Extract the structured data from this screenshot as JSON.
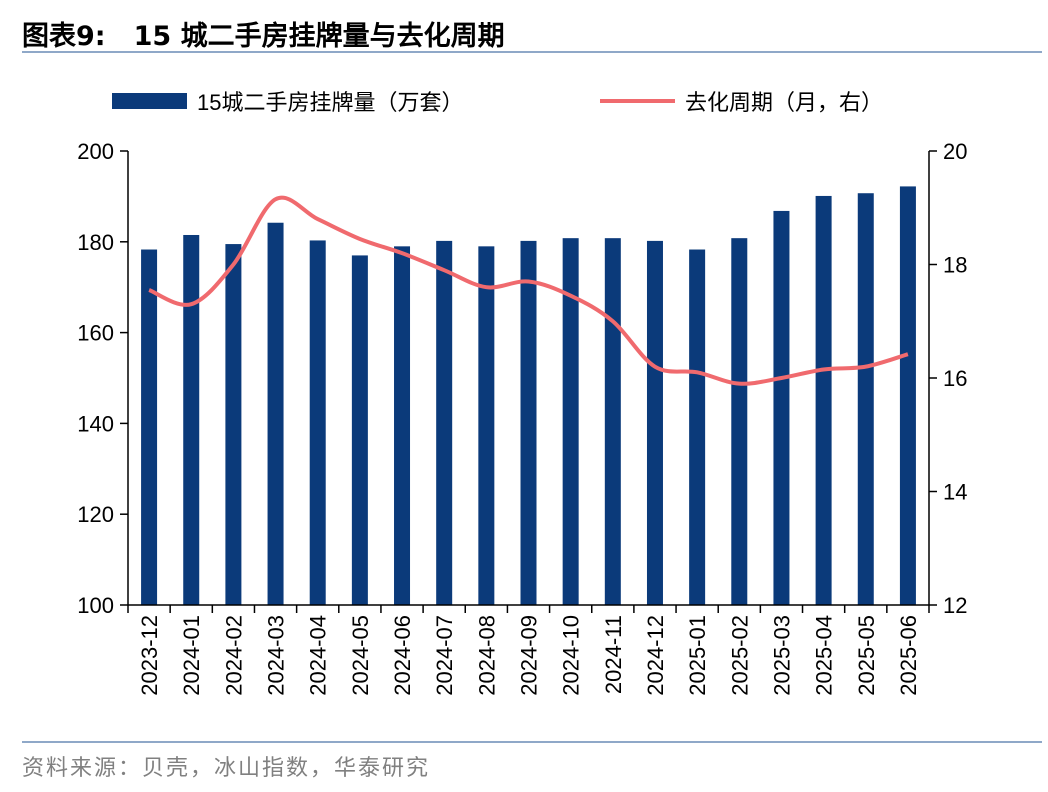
{
  "figure": {
    "label": "图表9:",
    "title": "15 城二手房挂牌量与去化周期",
    "source": "资料来源：贝壳，冰山指数，华泰研究"
  },
  "chart_data": {
    "type": "bar+line",
    "categories": [
      "2023-12",
      "2024-01",
      "2024-02",
      "2024-03",
      "2024-04",
      "2024-05",
      "2024-06",
      "2024-07",
      "2024-08",
      "2024-09",
      "2024-10",
      "2024-11",
      "2024-12",
      "2025-01",
      "2025-02",
      "2025-03",
      "2025-04",
      "2025-05",
      "2025-06"
    ],
    "series": [
      {
        "name": "15城二手房挂牌量（万套）",
        "type": "bar",
        "axis": "left",
        "color": "#0b3a7a",
        "values": [
          178.3,
          181.5,
          179.5,
          184.2,
          180.3,
          177.0,
          179.0,
          180.2,
          179.0,
          180.2,
          180.8,
          180.8,
          180.2,
          178.3,
          180.8,
          186.8,
          190.1,
          190.7,
          192.2
        ]
      },
      {
        "name": "去化周期（月，右）",
        "type": "line",
        "axis": "right",
        "color": "#f06a6e",
        "values": [
          17.55,
          17.3,
          18.0,
          19.15,
          18.8,
          18.45,
          18.2,
          17.9,
          17.6,
          17.7,
          17.45,
          17.0,
          16.2,
          16.1,
          15.9,
          16.0,
          16.15,
          16.2,
          16.42
        ]
      }
    ],
    "y_left": {
      "min": 100,
      "max": 200,
      "ticks": [
        "100",
        "120",
        "140",
        "160",
        "180",
        "200"
      ]
    },
    "y_right": {
      "min": 12,
      "max": 20,
      "ticks": [
        "12",
        "14",
        "16",
        "18",
        "20"
      ]
    },
    "legend_position": "top",
    "grid": false
  }
}
